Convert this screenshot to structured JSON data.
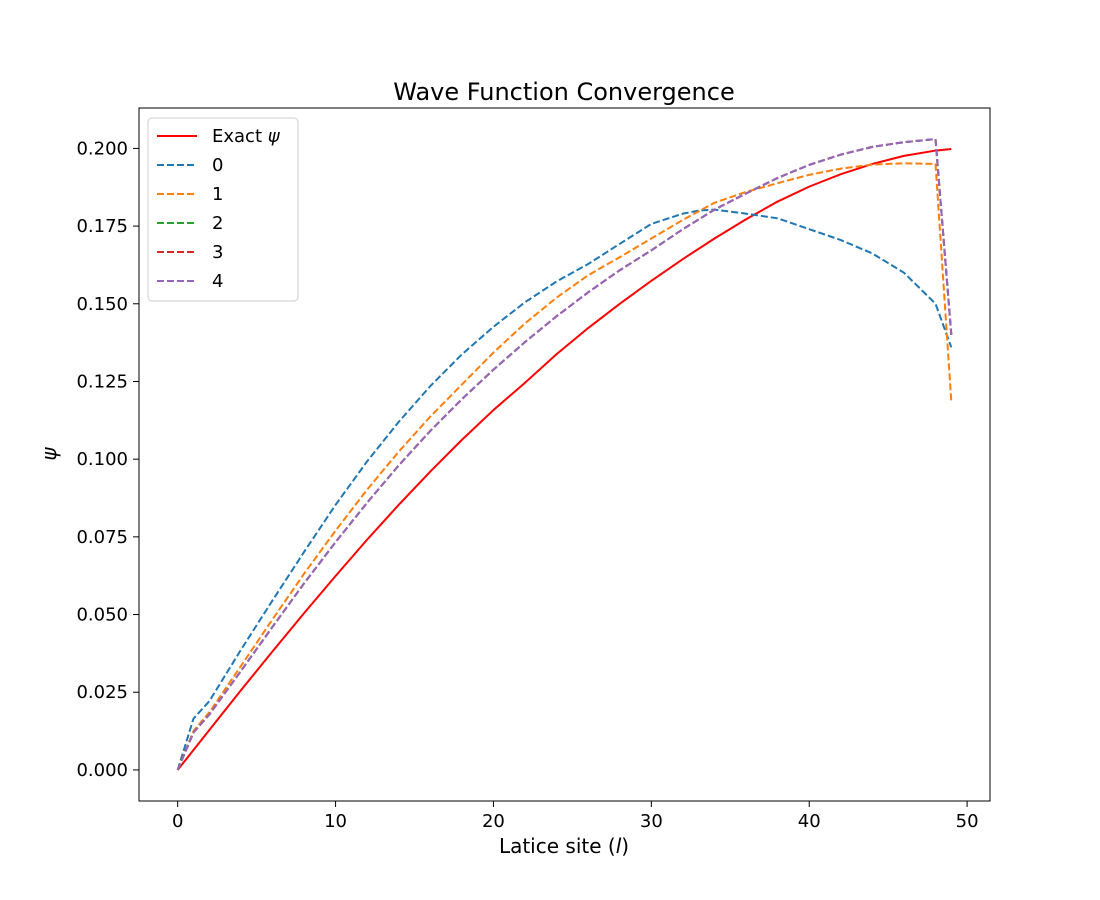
{
  "chart_data": {
    "type": "line",
    "title": "Wave Function Convergence",
    "xlabel": "Latice site (",
    "xlabel_var": "l",
    "xlabel_end": ")",
    "ylabel": "ψ",
    "xlim": [
      -2.45,
      51.45
    ],
    "ylim": [
      -0.01,
      0.213
    ],
    "xticks": [
      0,
      10,
      20,
      30,
      40,
      50
    ],
    "yticks": [
      0.0,
      0.025,
      0.05,
      0.075,
      0.1,
      0.125,
      0.15,
      0.175,
      0.2
    ],
    "ytick_labels": [
      "0.000",
      "0.025",
      "0.050",
      "0.075",
      "0.100",
      "0.125",
      "0.150",
      "0.175",
      "0.200"
    ],
    "grid": false,
    "legend_position": "upper-left",
    "series": [
      {
        "name": "Exact ψ",
        "legend_label": "Exact ",
        "legend_var": "ψ",
        "color": "#ff0000",
        "style": "solid",
        "x": [
          0,
          2,
          4,
          6,
          8,
          10,
          12,
          14,
          16,
          18,
          20,
          22,
          24,
          26,
          28,
          30,
          32,
          34,
          36,
          38,
          40,
          42,
          44,
          46,
          48,
          49
        ],
        "y": [
          0.0,
          0.0128,
          0.0256,
          0.0381,
          0.0504,
          0.0624,
          0.0741,
          0.0853,
          0.096,
          0.1062,
          0.1158,
          0.1246,
          0.1338,
          0.1422,
          0.15,
          0.1574,
          0.1644,
          0.171,
          0.1772,
          0.1829,
          0.1877,
          0.1917,
          0.195,
          0.1976,
          0.1993,
          0.1998
        ]
      },
      {
        "name": "0",
        "color": "#1f77b4",
        "style": "dashed",
        "x": [
          0,
          1,
          2,
          4,
          6,
          8,
          10,
          12,
          14,
          16,
          18,
          20,
          22,
          24,
          26,
          28,
          30,
          32,
          33,
          34,
          36,
          38,
          40,
          42,
          44,
          46,
          48,
          49
        ],
        "y": [
          0.0,
          0.0165,
          0.0221,
          0.0386,
          0.0545,
          0.0701,
          0.0853,
          0.0993,
          0.112,
          0.1235,
          0.1337,
          0.1426,
          0.1505,
          0.1572,
          0.1628,
          0.1693,
          0.1757,
          0.179,
          0.18,
          0.1803,
          0.179,
          0.1775,
          0.174,
          0.1705,
          0.1662,
          0.16,
          0.15,
          0.136
        ]
      },
      {
        "name": "1",
        "color": "#ff7f0e",
        "style": "dashed",
        "x": [
          0,
          1,
          2,
          4,
          6,
          8,
          10,
          12,
          14,
          16,
          18,
          20,
          22,
          24,
          26,
          28,
          30,
          32,
          34,
          36,
          38,
          40,
          42,
          44,
          46,
          48,
          49
        ],
        "y": [
          0.0,
          0.0125,
          0.0185,
          0.0334,
          0.0484,
          0.0631,
          0.077,
          0.0902,
          0.1024,
          0.1137,
          0.124,
          0.1343,
          0.1437,
          0.152,
          0.1592,
          0.165,
          0.171,
          0.177,
          0.1825,
          0.186,
          0.1888,
          0.1915,
          0.1935,
          0.1948,
          0.1952,
          0.195,
          0.1185
        ]
      },
      {
        "name": "2",
        "color": "#2ca02c",
        "style": "dashed",
        "x": [
          0,
          1,
          2,
          4,
          6,
          8,
          10,
          12,
          14,
          16,
          18,
          20,
          22,
          24,
          26,
          28,
          30,
          32,
          34,
          36,
          38,
          40,
          42,
          44,
          46,
          48,
          49
        ],
        "y": [
          0.0,
          0.012,
          0.0178,
          0.0318,
          0.046,
          0.06,
          0.0733,
          0.086,
          0.098,
          0.1091,
          0.1193,
          0.1288,
          0.1377,
          0.146,
          0.1537,
          0.1608,
          0.1672,
          0.174,
          0.1803,
          0.1855,
          0.1905,
          0.1947,
          0.198,
          0.2005,
          0.202,
          0.203,
          0.14
        ]
      },
      {
        "name": "3",
        "color": "#d62728",
        "style": "dashed",
        "x": [
          0,
          1,
          2,
          4,
          6,
          8,
          10,
          12,
          14,
          16,
          18,
          20,
          22,
          24,
          26,
          28,
          30,
          32,
          34,
          36,
          38,
          40,
          42,
          44,
          46,
          48,
          49
        ],
        "y": [
          0.0,
          0.012,
          0.0178,
          0.0318,
          0.046,
          0.06,
          0.0733,
          0.086,
          0.098,
          0.1091,
          0.1193,
          0.1288,
          0.1377,
          0.146,
          0.1537,
          0.1608,
          0.1672,
          0.174,
          0.1803,
          0.1855,
          0.1905,
          0.1947,
          0.198,
          0.2005,
          0.202,
          0.203,
          0.14
        ]
      },
      {
        "name": "4",
        "color": "#9467bd",
        "style": "dashed",
        "x": [
          0,
          1,
          2,
          4,
          6,
          8,
          10,
          12,
          14,
          16,
          18,
          20,
          22,
          24,
          26,
          28,
          30,
          32,
          34,
          36,
          38,
          40,
          42,
          44,
          46,
          48,
          49
        ],
        "y": [
          0.0,
          0.012,
          0.0178,
          0.0318,
          0.046,
          0.06,
          0.0733,
          0.086,
          0.098,
          0.1091,
          0.1193,
          0.1288,
          0.1377,
          0.146,
          0.1537,
          0.1608,
          0.1672,
          0.174,
          0.1803,
          0.1855,
          0.1905,
          0.1947,
          0.198,
          0.2005,
          0.202,
          0.203,
          0.14
        ]
      }
    ]
  }
}
